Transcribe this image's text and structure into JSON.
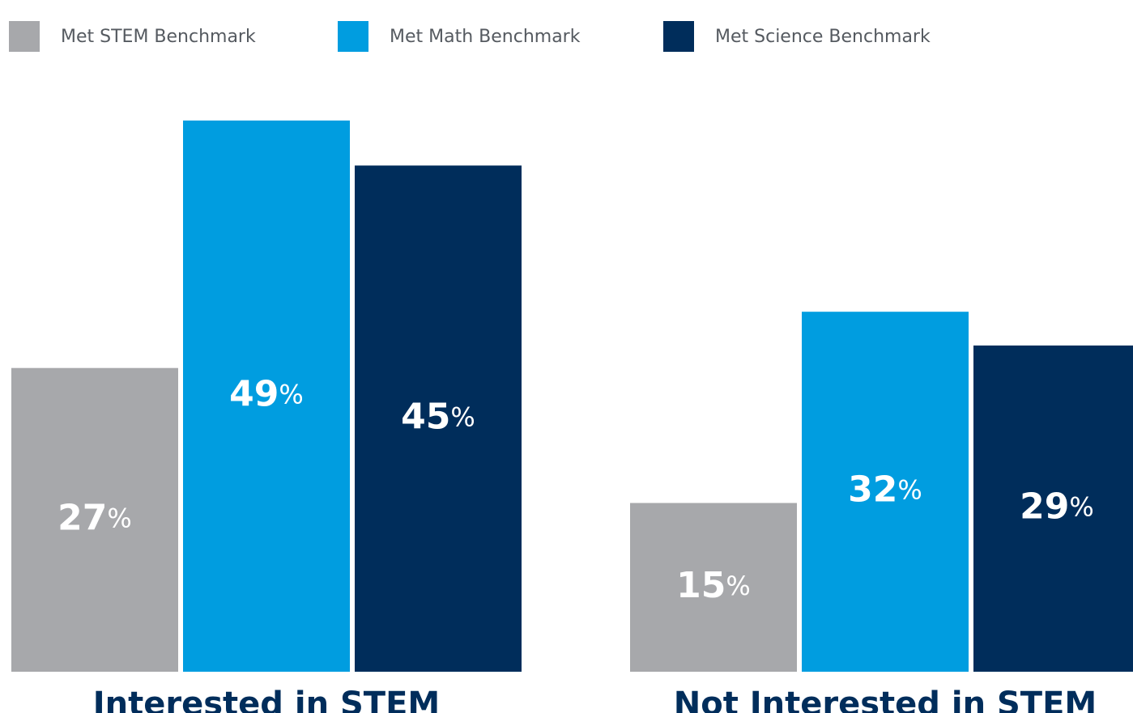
{
  "chart_data": {
    "type": "bar",
    "categories": [
      "Interested in STEM",
      "Not Interested in STEM"
    ],
    "series": [
      {
        "name": "Met STEM Benchmark",
        "color": "#a7a8ab",
        "values": [
          27,
          15
        ],
        "value_labels": [
          "27%",
          "15%"
        ]
      },
      {
        "name": "Met Math Benchmark",
        "color": "#009de0",
        "values": [
          49,
          32
        ],
        "value_labels": [
          "49%",
          "32%"
        ]
      },
      {
        "name": "Met Science Benchmark",
        "color": "#002d5b",
        "values": [
          45,
          29
        ],
        "value_labels": [
          "45%",
          "29%"
        ]
      }
    ],
    "legend": "top-left"
  }
}
